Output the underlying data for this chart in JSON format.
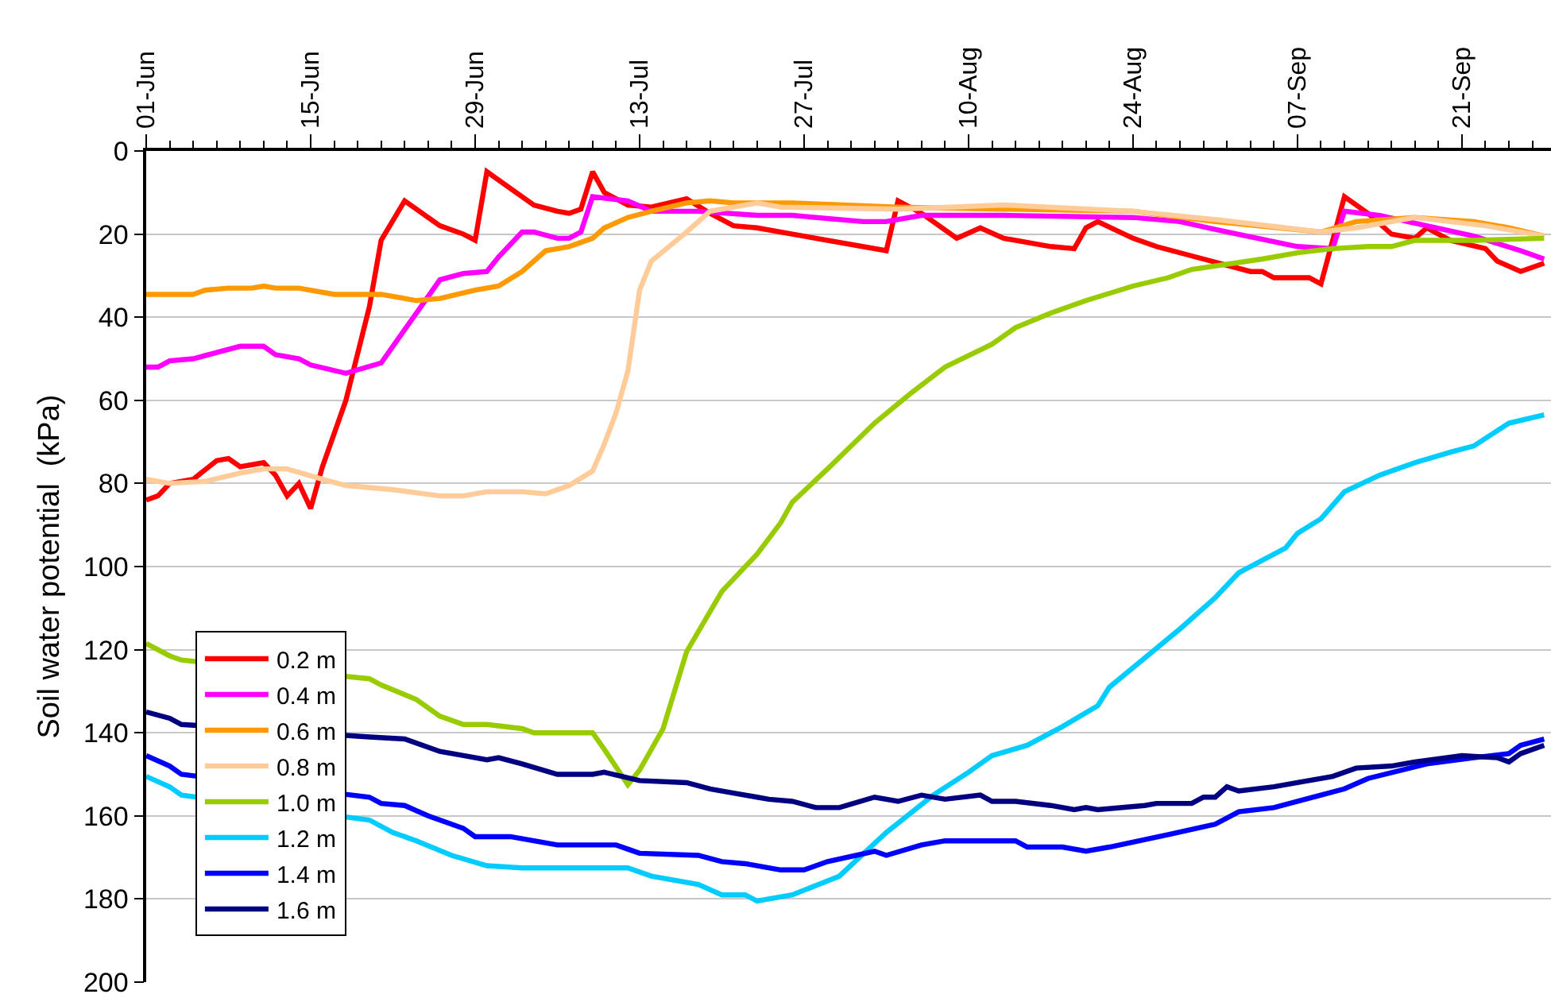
{
  "chart_data": {
    "type": "line",
    "ylabel": "Soil water potential  (kPa)",
    "xlim": [
      "--06-01",
      "--09-28T14:00"
    ],
    "xticks": [
      {
        "value": "--06-01",
        "label": "01-Jun"
      },
      {
        "value": "--06-15",
        "label": "15-Jun"
      },
      {
        "value": "--06-29",
        "label": "29-Jun"
      },
      {
        "value": "--07-13",
        "label": "13-Jul"
      },
      {
        "value": "--07-27",
        "label": "27-Jul"
      },
      {
        "value": "--08-10",
        "label": "10-Aug"
      },
      {
        "value": "--08-24",
        "label": "24-Aug"
      },
      {
        "value": "--09-07",
        "label": "07-Sep"
      },
      {
        "value": "--09-21",
        "label": "21-Sep"
      },
      {
        "value": "--06-03",
        "label": null
      },
      {
        "value": "--06-05",
        "label": null
      },
      {
        "value": "--06-07",
        "label": null
      },
      {
        "value": "--06-09",
        "label": null
      },
      {
        "value": "--06-11",
        "label": null
      },
      {
        "value": "--06-13",
        "label": null
      },
      {
        "value": "--06-17",
        "label": null
      },
      {
        "value": "--06-19",
        "label": null
      },
      {
        "value": "--06-21",
        "label": null
      },
      {
        "value": "--06-23",
        "label": null
      },
      {
        "value": "--06-25",
        "label": null
      },
      {
        "value": "--06-27",
        "label": null
      },
      {
        "value": "--07-01",
        "label": null
      },
      {
        "value": "--07-03",
        "label": null
      },
      {
        "value": "--07-05",
        "label": null
      },
      {
        "value": "--07-07",
        "label": null
      },
      {
        "value": "--07-09",
        "label": null
      },
      {
        "value": "--07-11",
        "label": null
      },
      {
        "value": "--07-15",
        "label": null
      },
      {
        "value": "--07-17",
        "label": null
      },
      {
        "value": "--07-19",
        "label": null
      },
      {
        "value": "--07-21",
        "label": null
      },
      {
        "value": "--07-23",
        "label": null
      },
      {
        "value": "--07-25",
        "label": null
      },
      {
        "value": "--07-29",
        "label": null
      },
      {
        "value": "--07-31",
        "label": null
      },
      {
        "value": "--08-02",
        "label": null
      },
      {
        "value": "--08-04",
        "label": null
      },
      {
        "value": "--08-06",
        "label": null
      },
      {
        "value": "--08-08",
        "label": null
      },
      {
        "value": "--08-12",
        "label": null
      },
      {
        "value": "--08-14",
        "label": null
      },
      {
        "value": "--08-16",
        "label": null
      },
      {
        "value": "--08-18",
        "label": null
      },
      {
        "value": "--08-20",
        "label": null
      },
      {
        "value": "--08-22",
        "label": null
      },
      {
        "value": "--08-26",
        "label": null
      },
      {
        "value": "--08-28",
        "label": null
      },
      {
        "value": "--08-30",
        "label": null
      },
      {
        "value": "--09-01",
        "label": null
      },
      {
        "value": "--09-03",
        "label": null
      },
      {
        "value": "--09-05",
        "label": null
      },
      {
        "value": "--09-09",
        "label": null
      },
      {
        "value": "--09-11",
        "label": null
      },
      {
        "value": "--09-13",
        "label": null
      },
      {
        "value": "--09-15",
        "label": null
      },
      {
        "value": "--09-17",
        "label": null
      },
      {
        "value": "--09-19",
        "label": null
      },
      {
        "value": "--09-23",
        "label": null
      },
      {
        "value": "--09-25",
        "label": null
      },
      {
        "value": "--09-27",
        "label": null
      }
    ],
    "ylim": [
      200,
      0
    ],
    "yticks": [
      0,
      20,
      40,
      60,
      80,
      100,
      120,
      140,
      160,
      180,
      200
    ],
    "grid": "y",
    "legend": "bottom left",
    "marker": "none",
    "line_style": "solid",
    "series": [
      {
        "name": "0.2 m",
        "color": "#ff0000",
        "x": [
          "--06-01",
          "--06-02",
          "--06-03",
          "--06-05",
          "--06-07",
          "--06-08",
          "--06-09",
          "--06-11",
          "--06-12",
          "--06-13",
          "--06-14",
          "--06-15",
          "--06-16",
          "--06-18",
          "--06-20",
          "--06-21",
          "--06-23",
          "--06-26",
          "--06-28",
          "--06-29",
          "--06-30",
          "--07-02",
          "--07-04",
          "--07-06",
          "--07-07",
          "--07-08",
          "--07-09",
          "--07-10",
          "--07-12",
          "--07-14",
          "--07-17",
          "--07-19",
          "--07-21",
          "--07-23",
          "--07-26",
          "--08-03",
          "--08-04",
          "--08-06",
          "--08-09",
          "--08-11",
          "--08-13",
          "--08-17",
          "--08-19",
          "--08-20",
          "--08-21",
          "--08-24",
          "--08-26",
          "--08-30",
          "--09-01",
          "--09-03",
          "--09-04",
          "--09-05",
          "--09-08",
          "--09-09",
          "--09-11",
          "--09-13",
          "--09-15",
          "--09-17",
          "--09-18",
          "--09-20",
          "--09-23",
          "--09-24",
          "--09-26",
          "--09-28"
        ],
        "values": [
          84,
          83,
          80,
          79,
          74.5,
          74,
          76,
          75,
          78,
          83,
          80,
          86,
          76,
          60,
          37.5,
          21.5,
          12,
          18,
          20,
          21.5,
          5,
          9,
          13,
          14.5,
          15,
          14,
          5,
          10,
          13,
          13.5,
          11.5,
          15,
          18,
          18.5,
          20,
          24,
          12,
          15,
          21,
          18.5,
          21,
          23,
          23.5,
          18.5,
          17,
          21,
          23,
          26,
          27.5,
          29,
          29,
          30.5,
          30.5,
          32,
          11,
          15,
          20,
          21,
          18.5,
          21.5,
          23.5,
          26.5,
          29,
          27
        ]
      },
      {
        "name": "0.4 m",
        "color": "#ff00ff",
        "x": [
          "--06-01",
          "--06-02",
          "--06-03",
          "--06-05",
          "--06-07",
          "--06-09",
          "--06-11",
          "--06-12",
          "--06-14",
          "--06-15",
          "--06-18",
          "--06-21",
          "--06-23",
          "--06-25",
          "--06-26",
          "--06-28",
          "--06-30",
          "--07-01",
          "--07-03",
          "--07-04",
          "--07-06",
          "--07-07",
          "--07-08",
          "--07-09",
          "--07-12",
          "--07-14",
          "--07-18",
          "--07-23",
          "--07-26",
          "--08-01",
          "--08-03",
          "--08-06",
          "--08-13",
          "--08-24",
          "--08-28",
          "--09-01",
          "--09-07",
          "--09-10",
          "--09-11",
          "--09-14",
          "--09-18",
          "--09-22",
          "--09-26",
          "--09-28"
        ],
        "values": [
          52,
          52,
          50.5,
          50,
          48.5,
          47,
          47,
          49,
          50,
          51.5,
          53.5,
          51,
          43,
          35,
          31,
          29.5,
          29,
          25.5,
          19.5,
          19.5,
          21,
          21,
          19.5,
          11,
          12,
          14.5,
          14.5,
          15.5,
          15.5,
          17,
          17,
          15.5,
          15.5,
          16,
          17,
          19.5,
          23,
          23.5,
          14.5,
          15.5,
          18,
          20.5,
          24,
          26
        ]
      },
      {
        "name": "0.6 m",
        "color": "#ff9900",
        "x": [
          "--06-01",
          "--06-05",
          "--06-06",
          "--06-08",
          "--06-10",
          "--06-11",
          "--06-12",
          "--06-14",
          "--06-17",
          "--06-21",
          "--06-24",
          "--06-26",
          "--06-29",
          "--07-01",
          "--07-03",
          "--07-05",
          "--07-07",
          "--07-09",
          "--07-10",
          "--07-12",
          "--07-14",
          "--07-17",
          "--07-19",
          "--07-21",
          "--07-26",
          "--08-04",
          "--08-13",
          "--08-24",
          "--08-31",
          "--09-09",
          "--09-12",
          "--09-17",
          "--09-22",
          "--09-25",
          "--09-28"
        ],
        "values": [
          34.5,
          34.5,
          33.5,
          33,
          33,
          32.5,
          33,
          33,
          34.5,
          34.5,
          36,
          35.5,
          33.5,
          32.5,
          29,
          24,
          23,
          21,
          18.5,
          16,
          14.5,
          12.5,
          12,
          12.5,
          12.5,
          13.5,
          14,
          14.5,
          17,
          19.5,
          17,
          16,
          17,
          18.5,
          20.5
        ]
      },
      {
        "name": "0.8 m",
        "color": "#ffcc99",
        "x": [
          "--06-01",
          "--06-03",
          "--06-06",
          "--06-09",
          "--06-11",
          "--06-13",
          "--06-16",
          "--06-18",
          "--06-22",
          "--06-26",
          "--06-28",
          "--06-30",
          "--07-03",
          "--07-05",
          "--07-07",
          "--07-09",
          "--07-10",
          "--07-11",
          "--07-12",
          "--07-13",
          "--07-14",
          "--07-17",
          "--07-19",
          "--07-23",
          "--07-25",
          "--08-04",
          "--08-13",
          "--08-24",
          "--08-31",
          "--09-09",
          "--09-12",
          "--09-17",
          "--09-23",
          "--09-28"
        ],
        "values": [
          79,
          80,
          79.5,
          77.5,
          76.5,
          76.5,
          79,
          80.5,
          81.5,
          83,
          83,
          82,
          82,
          82.5,
          80.5,
          77,
          70.5,
          63,
          53,
          33.5,
          26.5,
          19.5,
          14.5,
          12.5,
          13.5,
          14,
          13,
          14.5,
          16.5,
          19.5,
          18.5,
          16,
          18,
          20.5
        ]
      },
      {
        "name": "1.0 m",
        "color": "#99cc00",
        "x": [
          "--06-01",
          "--06-03",
          "--06-04",
          "--06-20",
          "--06-21",
          "--06-24",
          "--06-26",
          "--06-28",
          "--06-30",
          "--07-03",
          "--07-04",
          "--07-09",
          "--07-10",
          "--07-12",
          "--07-13",
          "--07-15",
          "--07-17",
          "--07-20",
          "--07-23",
          "--07-25",
          "--07-26",
          "--07-29",
          "--08-02",
          "--08-05",
          "--08-08",
          "--08-12",
          "--08-14",
          "--08-17",
          "--08-20",
          "--08-24",
          "--08-27",
          "--08-29",
          "--09-04",
          "--09-07",
          "--09-10",
          "--09-13",
          "--09-15",
          "--09-17",
          "--09-22",
          "--09-28"
        ],
        "values": [
          118.5,
          121.5,
          122.5,
          127,
          128.5,
          132,
          136,
          138,
          138,
          139,
          140,
          140,
          144,
          152.5,
          149,
          139,
          120.5,
          106,
          97,
          89.5,
          84.5,
          76.5,
          65.5,
          58.5,
          52,
          46.5,
          42.5,
          39,
          36,
          32.5,
          30.5,
          28.5,
          26,
          24.5,
          23.5,
          23,
          23,
          21.5,
          21.5,
          21
        ]
      },
      {
        "name": "1.2 m",
        "color": "#00ccff",
        "x": [
          "--06-01",
          "--06-03",
          "--06-04",
          "--06-20",
          "--06-22",
          "--06-24",
          "--06-27",
          "--06-30",
          "--07-03",
          "--07-12",
          "--07-14",
          "--07-18",
          "--07-20",
          "--07-22",
          "--07-23",
          "--07-26",
          "--07-30",
          "--08-03",
          "--08-07",
          "--08-10",
          "--08-12",
          "--08-15",
          "--08-18",
          "--08-21",
          "--08-22",
          "--08-28",
          "--08-31",
          "--09-02",
          "--09-06",
          "--09-07",
          "--09-09",
          "--09-11",
          "--09-14",
          "--09-17",
          "--09-20",
          "--09-22",
          "--09-25",
          "--09-28"
        ],
        "values": [
          150.5,
          153,
          155,
          161,
          164,
          166,
          169.5,
          172,
          172.5,
          172.5,
          174.5,
          176.5,
          179,
          179,
          180.5,
          179,
          174.5,
          164,
          155,
          149.5,
          145.5,
          143,
          138.5,
          133.5,
          129,
          115,
          107.5,
          101.5,
          95.5,
          92,
          88.5,
          82,
          78,
          75,
          72.5,
          71,
          65.5,
          63.5
        ]
      },
      {
        "name": "1.4 m",
        "color": "#0000ff",
        "x": [
          "--06-01",
          "--06-03",
          "--06-04",
          "--06-20",
          "--06-21",
          "--06-23",
          "--06-25",
          "--06-28",
          "--06-29",
          "--07-02",
          "--07-04",
          "--07-06",
          "--07-11",
          "--07-12",
          "--07-13",
          "--07-18",
          "--07-20",
          "--07-22",
          "--07-25",
          "--07-27",
          "--07-29",
          "--08-02",
          "--08-03",
          "--08-06",
          "--08-08",
          "--08-14",
          "--08-15",
          "--08-18",
          "--08-20",
          "--08-22",
          "--08-27",
          "--08-31",
          "--09-02",
          "--09-05",
          "--09-09",
          "--09-11",
          "--09-13",
          "--09-18",
          "--09-22",
          "--09-25",
          "--09-26",
          "--09-28"
        ],
        "values": [
          145.5,
          148,
          150,
          155.5,
          157,
          157.5,
          160,
          163,
          165,
          165,
          166,
          167,
          167,
          168,
          169,
          169.5,
          171,
          171.5,
          173,
          173,
          171,
          168.5,
          169.5,
          167,
          166,
          166,
          167.5,
          167.5,
          168.5,
          167.5,
          164.5,
          162,
          159,
          158,
          155,
          153.5,
          151,
          147.5,
          146,
          145,
          143,
          141.5
        ]
      },
      {
        "name": "1.6 m",
        "color": "#000080",
        "x": [
          "--06-01",
          "--06-03",
          "--06-04",
          "--06-20",
          "--06-23",
          "--06-26",
          "--06-28",
          "--06-30",
          "--07-01",
          "--07-03",
          "--07-06",
          "--07-09",
          "--07-10",
          "--07-13",
          "--07-17",
          "--07-19",
          "--07-21",
          "--07-23",
          "--07-24",
          "--07-26",
          "--07-28",
          "--07-30",
          "--08-02",
          "--08-04",
          "--08-06",
          "--08-08",
          "--08-11",
          "--08-12",
          "--08-14",
          "--08-17",
          "--08-19",
          "--08-20",
          "--08-21",
          "--08-25",
          "--08-26",
          "--08-29",
          "--08-30",
          "--08-31",
          "--09-01",
          "--09-02",
          "--09-05",
          "--09-07",
          "--09-10",
          "--09-12",
          "--09-15",
          "--09-17",
          "--09-21",
          "--09-24",
          "--09-25",
          "--09-26",
          "--09-28"
        ],
        "values": [
          135,
          136.5,
          138,
          141,
          141.5,
          144.5,
          145.5,
          146.5,
          146,
          147.5,
          150,
          150,
          149.5,
          151.5,
          152,
          153.5,
          154.5,
          155.5,
          156,
          156.5,
          158,
          158,
          155.5,
          156.5,
          155,
          156,
          155,
          156.5,
          156.5,
          157.5,
          158.5,
          158,
          158.5,
          157.5,
          157,
          157,
          155.5,
          155.5,
          153,
          154,
          153,
          152,
          150.5,
          148.5,
          148,
          147,
          145.5,
          146,
          147,
          145,
          143
        ]
      }
    ]
  }
}
